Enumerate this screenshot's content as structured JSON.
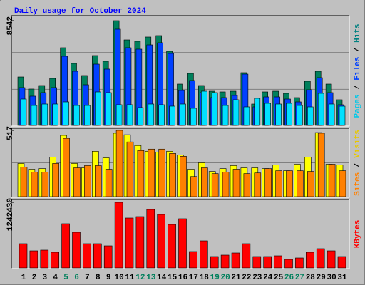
{
  "chart_data": {
    "type": "bar",
    "title": "Daily usage for October 2024",
    "title_color": "#0000ff",
    "legend_separator": " / ",
    "categories": [
      "1",
      "2",
      "3",
      "4",
      "5",
      "6",
      "7",
      "8",
      "9",
      "10",
      "11",
      "12",
      "13",
      "14",
      "15",
      "16",
      "17",
      "18",
      "19",
      "20",
      "21",
      "22",
      "23",
      "24",
      "25",
      "26",
      "27",
      "28",
      "29",
      "30",
      "31"
    ],
    "category_colors": [
      "#000000",
      "#000000",
      "#000000",
      "#000000",
      "#00805c",
      "#00805c",
      "#000000",
      "#000000",
      "#000000",
      "#000000",
      "#000000",
      "#00805c",
      "#00805c",
      "#000000",
      "#000000",
      "#000000",
      "#000000",
      "#000000",
      "#00805c",
      "#00805c",
      "#000000",
      "#000000",
      "#000000",
      "#000000",
      "#000000",
      "#00805c",
      "#00805c",
      "#000000",
      "#000000",
      "#000000",
      "#000000"
    ],
    "panels": [
      {
        "ylim": [
          0,
          8542
        ],
        "yticks": [
          8542
        ],
        "series": [
          {
            "name": "Hits",
            "color": "#00805c",
            "label_color": "#008080",
            "values": [
              3951,
              2964,
              3254,
              3835,
              6334,
              5056,
              4068,
              5695,
              5230,
              8542,
              6973,
              6857,
              7206,
              7322,
              6043,
              3370,
              4242,
              3254,
              2789,
              2731,
              2789,
              4300,
              1743,
              2731,
              2789,
              2615,
              2266,
              3603,
              4416,
              3370,
              2092
            ]
          },
          {
            "name": "Files",
            "color": "#0040ff",
            "label_color": "#0040ff",
            "values": [
              3080,
              2383,
              2673,
              3080,
              5637,
              4416,
              3312,
              4997,
              4591,
              7845,
              6334,
              6218,
              6566,
              6741,
              5869,
              2847,
              3661,
              2673,
              2266,
              2266,
              2441,
              4184,
              1511,
              2324,
              2324,
              2150,
              1918,
              2906,
              3893,
              2673,
              1685
            ]
          },
          {
            "name": "Pages",
            "color": "#00e0ff",
            "label_color": "#00c8e8",
            "values": [
              2150,
              1627,
              1743,
              1743,
              1918,
              1627,
              1627,
              2731,
              2673,
              1685,
              1685,
              1453,
              1743,
              1685,
              1569,
              1743,
              1395,
              2789,
              2673,
              1627,
              2092,
              1511,
              2208,
              1801,
              1743,
              1801,
              1627,
              1511,
              2615,
              1743,
              1569
            ]
          }
        ]
      },
      {
        "ylim": [
          0,
          517
        ],
        "yticks": [
          517
        ],
        "series": [
          {
            "name": "Visits",
            "color": "#ffff00",
            "label_color": "#e8c800",
            "values": [
              259,
              214,
              219,
              309,
              478,
              259,
              225,
              354,
              303,
              495,
              483,
              399,
              354,
              348,
              354,
              326,
              214,
              264,
              197,
              219,
              242,
              225,
              225,
              219,
              247,
              202,
              253,
              309,
              500,
              253,
              247
            ]
          },
          {
            "name": "Sites",
            "color": "#ff8000",
            "label_color": "#ff8000",
            "values": [
              230,
              191,
              191,
              259,
              455,
              225,
              242,
              242,
              214,
              517,
              427,
              360,
              371,
              371,
              337,
              315,
              157,
              225,
              180,
              191,
              214,
              180,
              185,
              219,
              202,
              202,
              202,
              197,
              495,
              253,
              202
            ]
          }
        ]
      },
      {
        "ylim": [
          0,
          1242430
        ],
        "yticks": [
          1242430
        ],
        "series": [
          {
            "name": "KBytes",
            "color": "#ff0000",
            "label_color": "#ff0000",
            "values": [
              459170,
              324120,
              337625,
              297110,
              837310,
              675250,
              459170,
              459170,
              418655,
              1242430,
              945350,
              972360,
              1107410,
              1012875,
              823805,
              931845,
              310615,
              513190,
              216080,
              243090,
              283605,
              459170,
              216080,
              216080,
              229585,
              162060,
              189070,
              297110,
              364635,
              324120,
              216080
            ]
          }
        ]
      }
    ]
  }
}
